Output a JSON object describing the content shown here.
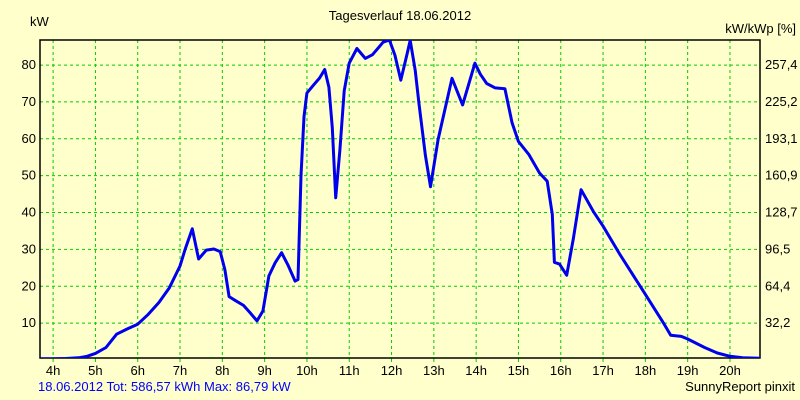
{
  "header": {
    "title": "Tagesverlauf 18.06.2012",
    "left_unit": "kW",
    "right_unit": "kW/kWp [%]"
  },
  "footer": {
    "summary": "18.06.2012 Tot: 586,57 kWh Max: 86,79 kW",
    "credit": "SunnyReport pinxit"
  },
  "colors": {
    "background": "#ffffcc",
    "grid": "#00cc00",
    "curve": "#0000ee",
    "frame": "#000000",
    "text": "#000000",
    "summary_text": "#0000ff"
  },
  "chart_data": {
    "type": "line",
    "title": "Tagesverlauf 18.06.2012",
    "ylabel_left": "kW",
    "ylabel_right": "kW/kWp [%]",
    "grid": true,
    "legend": false,
    "xlim": [
      3.69,
      20.71
    ],
    "ylim": [
      0,
      86.8
    ],
    "xtick_values": [
      4,
      5,
      6,
      7,
      8,
      9,
      10,
      11,
      12,
      13,
      14,
      15,
      16,
      17,
      18,
      19,
      20
    ],
    "xtick_labels": [
      "4h",
      "5h",
      "6h",
      "7h",
      "8h",
      "9h",
      "10h",
      "11h",
      "12h",
      "13h",
      "14h",
      "15h",
      "16h",
      "17h",
      "18h",
      "19h",
      "20h"
    ],
    "ytick_values": [
      10,
      20,
      30,
      40,
      50,
      60,
      70,
      80
    ],
    "ytick_labels_left": [
      "10",
      "20",
      "30",
      "40",
      "50",
      "60",
      "70",
      "80"
    ],
    "ytick_labels_right": [
      "32,2",
      "64,4",
      "96,5",
      "128,7",
      "160,9",
      "193,1",
      "225,2",
      "257,4"
    ],
    "series": [
      {
        "name": "kW",
        "points": [
          [
            3.69,
            0.3
          ],
          [
            4.0,
            0.3
          ],
          [
            4.3,
            0.4
          ],
          [
            4.6,
            0.6
          ],
          [
            4.8,
            1.0
          ],
          [
            5.0,
            1.8
          ],
          [
            5.25,
            3.4
          ],
          [
            5.5,
            7.0
          ],
          [
            5.75,
            8.4
          ],
          [
            6.0,
            9.7
          ],
          [
            6.25,
            12.4
          ],
          [
            6.5,
            15.6
          ],
          [
            6.75,
            19.6
          ],
          [
            7.0,
            25.5
          ],
          [
            7.12,
            30.0
          ],
          [
            7.29,
            35.6
          ],
          [
            7.44,
            27.4
          ],
          [
            7.62,
            29.8
          ],
          [
            7.8,
            30.1
          ],
          [
            7.95,
            29.4
          ],
          [
            8.06,
            24.5
          ],
          [
            8.16,
            17.2
          ],
          [
            8.3,
            16.2
          ],
          [
            8.5,
            14.8
          ],
          [
            8.65,
            12.9
          ],
          [
            8.82,
            10.6
          ],
          [
            8.96,
            13.3
          ],
          [
            9.1,
            22.8
          ],
          [
            9.25,
            26.4
          ],
          [
            9.4,
            29.1
          ],
          [
            9.55,
            25.8
          ],
          [
            9.72,
            21.4
          ],
          [
            9.79,
            21.8
          ],
          [
            9.86,
            50.0
          ],
          [
            9.93,
            66.0
          ],
          [
            10.0,
            72.4
          ],
          [
            10.15,
            74.5
          ],
          [
            10.3,
            76.5
          ],
          [
            10.42,
            78.8
          ],
          [
            10.52,
            74.0
          ],
          [
            10.6,
            63.0
          ],
          [
            10.68,
            44.0
          ],
          [
            10.78,
            57.0
          ],
          [
            10.88,
            73.0
          ],
          [
            11.0,
            80.5
          ],
          [
            11.18,
            84.5
          ],
          [
            11.38,
            81.8
          ],
          [
            11.55,
            82.8
          ],
          [
            11.8,
            86.2
          ],
          [
            11.95,
            86.8
          ],
          [
            12.08,
            82.7
          ],
          [
            12.22,
            75.9
          ],
          [
            12.36,
            82.7
          ],
          [
            12.44,
            86.7
          ],
          [
            12.56,
            78.6
          ],
          [
            12.65,
            69.5
          ],
          [
            12.8,
            55.5
          ],
          [
            12.92,
            47.0
          ],
          [
            13.1,
            59.8
          ],
          [
            13.43,
            76.4
          ],
          [
            13.68,
            69.2
          ],
          [
            13.97,
            80.5
          ],
          [
            14.1,
            77.5
          ],
          [
            14.25,
            75.0
          ],
          [
            14.45,
            73.8
          ],
          [
            14.68,
            73.6
          ],
          [
            14.85,
            64.3
          ],
          [
            15.0,
            59.3
          ],
          [
            15.25,
            55.7
          ],
          [
            15.5,
            50.7
          ],
          [
            15.68,
            48.5
          ],
          [
            15.8,
            39.5
          ],
          [
            15.85,
            26.5
          ],
          [
            15.97,
            26.0
          ],
          [
            16.14,
            23.0
          ],
          [
            16.3,
            33.0
          ],
          [
            16.48,
            46.2
          ],
          [
            16.77,
            40.3
          ],
          [
            17.0,
            36.3
          ],
          [
            17.4,
            28.6
          ],
          [
            18.0,
            17.8
          ],
          [
            18.42,
            10.2
          ],
          [
            18.6,
            6.7
          ],
          [
            18.85,
            6.4
          ],
          [
            19.0,
            5.7
          ],
          [
            19.4,
            3.4
          ],
          [
            19.7,
            1.9
          ],
          [
            20.0,
            1.0
          ],
          [
            20.3,
            0.6
          ],
          [
            20.71,
            0.5
          ]
        ]
      }
    ]
  }
}
